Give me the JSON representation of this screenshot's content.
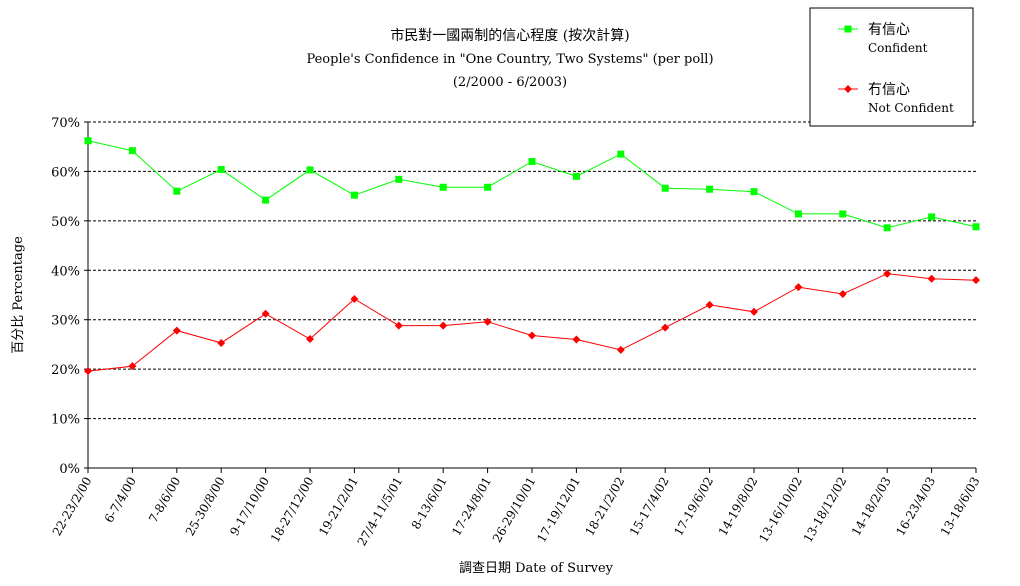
{
  "chart_data": {
    "type": "line",
    "title": "市民對一國兩制的信心程度 (按次計算)",
    "subtitle": "People's Confidence in \"One Country, Two Systems\" (per poll)",
    "period": "(2/2000 - 6/2003)",
    "ylabel": "百分比 Percentage",
    "xlabel": "調查日期 Date of Survey",
    "ylim": [
      0,
      70
    ],
    "yticks": [
      "0%",
      "10%",
      "20%",
      "30%",
      "40%",
      "50%",
      "60%",
      "70%"
    ],
    "grid": true,
    "legend_position": "top-right",
    "categories": [
      "22-23/2/00",
      "6-7/4/00",
      "7-8/6/00",
      "25-30/8/00",
      "9-17/10/00",
      "18-27/12/00",
      "19-21/2/01",
      "27/4-11/5/01",
      "8-13/6/01",
      "17-24/8/01",
      "26-29/10/01",
      "17-19/12/01",
      "18-21/2/02",
      "15-17/4/02",
      "17-19/6/02",
      "14-19/8/02",
      "13-16/10/02",
      "13-18/12/02",
      "14-18/2/03",
      "16-23/4/03",
      "13-18/6/03"
    ],
    "series": [
      {
        "name": "有信心",
        "name_en": "Confident",
        "color": "#00ff00",
        "marker": "square",
        "values": [
          66.2,
          64.2,
          56.0,
          60.4,
          54.2,
          60.3,
          55.2,
          58.4,
          56.8,
          56.8,
          62.0,
          59.0,
          63.5,
          56.6,
          56.4,
          55.9,
          51.4,
          51.4,
          48.6,
          50.8,
          48.8
        ]
      },
      {
        "name": "冇信心",
        "name_en": "Not Confident",
        "color": "#ff0000",
        "marker": "diamond",
        "values": [
          19.6,
          20.6,
          27.8,
          25.3,
          31.2,
          26.1,
          34.2,
          28.8,
          28.8,
          29.6,
          26.8,
          26.0,
          23.9,
          28.4,
          33.0,
          31.6,
          36.6,
          35.2,
          39.3,
          38.3,
          38.0
        ]
      }
    ]
  }
}
